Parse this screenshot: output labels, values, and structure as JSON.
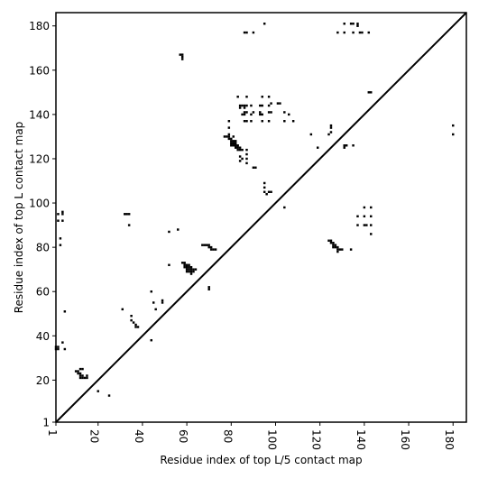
{
  "chart_data": {
    "type": "scatter",
    "xlabel": "Residue index of top L/5 contact map",
    "ylabel": "Residue index of top L contact map",
    "xlim": [
      1,
      186
    ],
    "ylim": [
      1,
      186
    ],
    "xticks": [
      1,
      20,
      40,
      60,
      80,
      100,
      120,
      140,
      160,
      180
    ],
    "yticks": [
      1,
      20,
      40,
      60,
      80,
      100,
      120,
      140,
      160,
      180
    ],
    "grid": false,
    "marker": "square",
    "diagonal": true,
    "colors": {
      "marker": "#000000",
      "diagonal": "#000000",
      "frame": "#000000",
      "background": "#ffffff"
    },
    "series": [
      {
        "points": [
          [
            1,
            35
          ],
          [
            2,
            35
          ],
          [
            1,
            34
          ],
          [
            2,
            34
          ],
          [
            2,
            92
          ],
          [
            2,
            95
          ],
          [
            3,
            81
          ],
          [
            3,
            84
          ],
          [
            4,
            92
          ],
          [
            4,
            95
          ],
          [
            4,
            96
          ],
          [
            5,
            34
          ],
          [
            5,
            51
          ],
          [
            4,
            37
          ],
          [
            10,
            24
          ],
          [
            11,
            24
          ],
          [
            11,
            23
          ],
          [
            12,
            23
          ],
          [
            12,
            22
          ],
          [
            13,
            22
          ],
          [
            13,
            21
          ],
          [
            14,
            21
          ],
          [
            15,
            21
          ],
          [
            15,
            22
          ],
          [
            12,
            25
          ],
          [
            13,
            25
          ],
          [
            12,
            21
          ],
          [
            20,
            15
          ],
          [
            25,
            13
          ],
          [
            31,
            52
          ],
          [
            32,
            95
          ],
          [
            33,
            95
          ],
          [
            34,
            95
          ],
          [
            34,
            90
          ],
          [
            35,
            49
          ],
          [
            35,
            47
          ],
          [
            36,
            46
          ],
          [
            37,
            45
          ],
          [
            37,
            44
          ],
          [
            38,
            44
          ],
          [
            44,
            38
          ],
          [
            44,
            60
          ],
          [
            45,
            55
          ],
          [
            46,
            52
          ],
          [
            49,
            55
          ],
          [
            49,
            56
          ],
          [
            52,
            87
          ],
          [
            52,
            72
          ],
          [
            56,
            88
          ],
          [
            57,
            167
          ],
          [
            58,
            167
          ],
          [
            58,
            166
          ],
          [
            58,
            165
          ],
          [
            58,
            73
          ],
          [
            59,
            73
          ],
          [
            59,
            72
          ],
          [
            60,
            72
          ],
          [
            60,
            71
          ],
          [
            60,
            70
          ],
          [
            61,
            72
          ],
          [
            61,
            71
          ],
          [
            61,
            70
          ],
          [
            61,
            69
          ],
          [
            62,
            70
          ],
          [
            62,
            69
          ],
          [
            62,
            68
          ],
          [
            63,
            70
          ],
          [
            63,
            69
          ],
          [
            64,
            70
          ],
          [
            59,
            71
          ],
          [
            60,
            69
          ],
          [
            62,
            71
          ],
          [
            67,
            81
          ],
          [
            68,
            81
          ],
          [
            69,
            81
          ],
          [
            70,
            81
          ],
          [
            70,
            80
          ],
          [
            71,
            80
          ],
          [
            71,
            79
          ],
          [
            72,
            79
          ],
          [
            73,
            79
          ],
          [
            70,
            62
          ],
          [
            70,
            61
          ],
          [
            77,
            130
          ],
          [
            78,
            130
          ],
          [
            79,
            130
          ],
          [
            79,
            131
          ],
          [
            79,
            129
          ],
          [
            80,
            129
          ],
          [
            80,
            128
          ],
          [
            80,
            127
          ],
          [
            81,
            128
          ],
          [
            81,
            127
          ],
          [
            81,
            126
          ],
          [
            82,
            127
          ],
          [
            82,
            126
          ],
          [
            82,
            125
          ],
          [
            83,
            126
          ],
          [
            83,
            125
          ],
          [
            83,
            124
          ],
          [
            84,
            125
          ],
          [
            84,
            124
          ],
          [
            84,
            121
          ],
          [
            84,
            119
          ],
          [
            85,
            120
          ],
          [
            85,
            124
          ],
          [
            79,
            134
          ],
          [
            79,
            137
          ],
          [
            81,
            130
          ],
          [
            80,
            126
          ],
          [
            82,
            128
          ],
          [
            83,
            148
          ],
          [
            84,
            143
          ],
          [
            84,
            144
          ],
          [
            85,
            140
          ],
          [
            85,
            144
          ],
          [
            86,
            143
          ],
          [
            86,
            144
          ],
          [
            86,
            141
          ],
          [
            86,
            140
          ],
          [
            86,
            137
          ],
          [
            87,
            141
          ],
          [
            87,
            137
          ],
          [
            87,
            148
          ],
          [
            87,
            144
          ],
          [
            87,
            124
          ],
          [
            87,
            122
          ],
          [
            87,
            120
          ],
          [
            87,
            118
          ],
          [
            89,
            144
          ],
          [
            89,
            140
          ],
          [
            89,
            137
          ],
          [
            90,
            141
          ],
          [
            90,
            116
          ],
          [
            91,
            116
          ],
          [
            93,
            144
          ],
          [
            93,
            141
          ],
          [
            93,
            140
          ],
          [
            94,
            148
          ],
          [
            94,
            144
          ],
          [
            94,
            140
          ],
          [
            94,
            137
          ],
          [
            95,
            109
          ],
          [
            95,
            107
          ],
          [
            95,
            105
          ],
          [
            96,
            104
          ],
          [
            97,
            105
          ],
          [
            97,
            148
          ],
          [
            97,
            144
          ],
          [
            97,
            141
          ],
          [
            97,
            137
          ],
          [
            98,
            145
          ],
          [
            98,
            141
          ],
          [
            98,
            105
          ],
          [
            101,
            145
          ],
          [
            102,
            145
          ],
          [
            104,
            98
          ],
          [
            104,
            141
          ],
          [
            104,
            137
          ],
          [
            106,
            140
          ],
          [
            108,
            137
          ],
          [
            86,
            177
          ],
          [
            87,
            177
          ],
          [
            90,
            177
          ],
          [
            95,
            181
          ],
          [
            116,
            131
          ],
          [
            119,
            125
          ],
          [
            124,
            131
          ],
          [
            125,
            134
          ],
          [
            125,
            135
          ],
          [
            125,
            132
          ],
          [
            131,
            126
          ],
          [
            132,
            126
          ],
          [
            135,
            126
          ],
          [
            131,
            125
          ],
          [
            124,
            83
          ],
          [
            125,
            83
          ],
          [
            125,
            82
          ],
          [
            126,
            82
          ],
          [
            126,
            81
          ],
          [
            126,
            80
          ],
          [
            127,
            81
          ],
          [
            127,
            80
          ],
          [
            128,
            80
          ],
          [
            128,
            79
          ],
          [
            128,
            78
          ],
          [
            129,
            79
          ],
          [
            130,
            79
          ],
          [
            134,
            79
          ],
          [
            128,
            177
          ],
          [
            131,
            181
          ],
          [
            131,
            177
          ],
          [
            134,
            181
          ],
          [
            135,
            181
          ],
          [
            135,
            177
          ],
          [
            137,
            181
          ],
          [
            137,
            180
          ],
          [
            138,
            177
          ],
          [
            139,
            177
          ],
          [
            142,
            177
          ],
          [
            142,
            150
          ],
          [
            143,
            150
          ],
          [
            137,
            94
          ],
          [
            137,
            90
          ],
          [
            140,
            98
          ],
          [
            140,
            94
          ],
          [
            140,
            90
          ],
          [
            141,
            90
          ],
          [
            143,
            98
          ],
          [
            143,
            94
          ],
          [
            143,
            90
          ],
          [
            143,
            86
          ],
          [
            180,
            131
          ],
          [
            180,
            135
          ]
        ]
      }
    ]
  }
}
